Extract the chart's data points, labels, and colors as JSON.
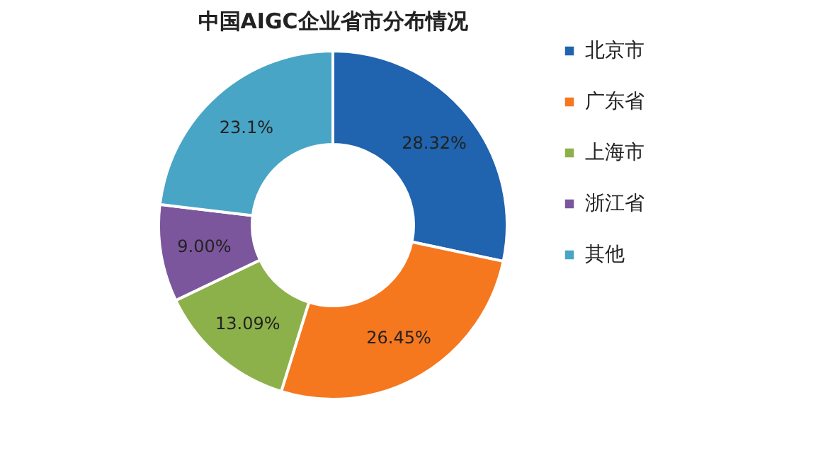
{
  "chart_data": {
    "type": "donut",
    "title": "中国AIGC企业省市分布情况",
    "categories": [
      "北京市",
      "广东省",
      "上海市",
      "浙江省",
      "其他"
    ],
    "values": [
      28.32,
      26.45,
      13.09,
      9.0,
      23.1
    ],
    "value_labels": [
      "28.32%",
      "26.45%",
      "13.09%",
      "9.00%",
      "23.1%"
    ],
    "colors": [
      "#2063ae",
      "#f5781f",
      "#8db14a",
      "#7b569c",
      "#49a5c5"
    ],
    "legend": "right"
  }
}
